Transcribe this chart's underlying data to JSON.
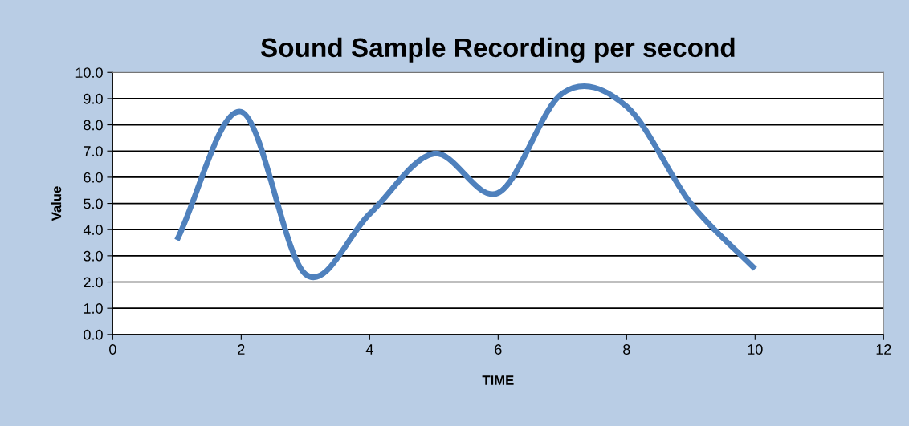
{
  "chart_data": {
    "type": "line",
    "title": "Sound Sample Recording per second",
    "xlabel": "TIME",
    "ylabel": "Value",
    "x": [
      1,
      2,
      3,
      4,
      5,
      6,
      7,
      8,
      9,
      10
    ],
    "series": [
      {
        "color": "#4f81bd",
        "values": [
          3.6,
          8.5,
          2.3,
          4.6,
          6.9,
          5.4,
          9.2,
          8.7,
          5.0,
          2.5
        ]
      }
    ],
    "xlim": [
      0,
      12
    ],
    "xticks": [
      0,
      2,
      4,
      6,
      8,
      10,
      12
    ],
    "ylim": [
      0,
      10
    ],
    "yticks": [
      {
        "value": 0,
        "label": "0.0"
      },
      {
        "value": 1,
        "label": "1.0"
      },
      {
        "value": 2,
        "label": "2.0"
      },
      {
        "value": 3,
        "label": "3.0"
      },
      {
        "value": 4,
        "label": "4.0"
      },
      {
        "value": 5,
        "label": "5.0"
      },
      {
        "value": 6,
        "label": "6.0"
      },
      {
        "value": 7,
        "label": "7.0"
      },
      {
        "value": 8,
        "label": "8.0"
      },
      {
        "value": 9,
        "label": "9.0"
      },
      {
        "value": 10,
        "label": "10.0"
      }
    ],
    "grid": "y",
    "marker": "none",
    "line_style": "solid"
  }
}
